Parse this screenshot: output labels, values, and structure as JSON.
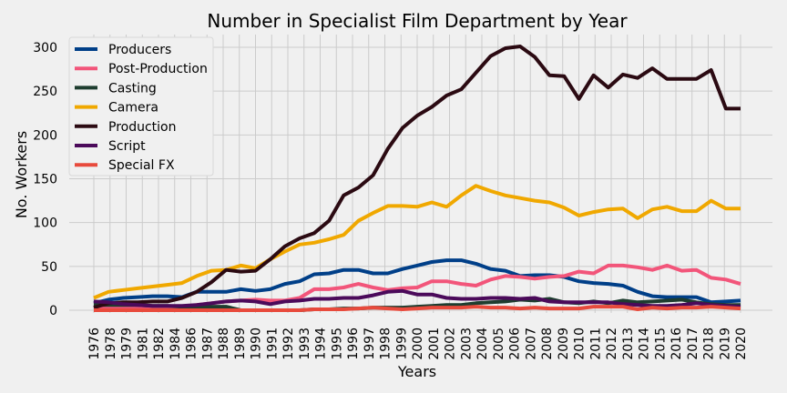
{
  "chart_data": {
    "type": "line",
    "title": "Number in Specialist Film Department by Year",
    "xlabel": "Years",
    "ylabel": "No. Workers",
    "ylim": [
      -2,
      314
    ],
    "yticks": [
      0,
      50,
      100,
      150,
      200,
      250,
      300
    ],
    "grid": true,
    "legend_position": "top-left",
    "x": [
      1976,
      1977,
      1978,
      1979,
      1980,
      1981,
      1982,
      1983,
      1984,
      1985,
      1986,
      1987,
      1988,
      1989,
      1990,
      1991,
      1992,
      1993,
      1994,
      1995,
      1996,
      1997,
      1998,
      1999,
      2000,
      2001,
      2002,
      2003,
      2004,
      2005,
      2006,
      2007,
      2008,
      2009,
      2010,
      2011,
      2012,
      2013,
      2014,
      2015,
      2016,
      2017,
      2018,
      2019,
      2020
    ],
    "xtick_labels": [
      "1976",
      "1978",
      "1979",
      "1981",
      "1982",
      "1984",
      "1986",
      "1987",
      "1988",
      "1989",
      "1990",
      "1991",
      "1992",
      "1993",
      "1994",
      "1995",
      "1996",
      "1997",
      "1998",
      "1999",
      "2000",
      "2001",
      "2002",
      "2003",
      "2004",
      "2005",
      "2006",
      "2007",
      "2008",
      "2009",
      "2010",
      "2011",
      "2012",
      "2013",
      "2014",
      "2015",
      "2016",
      "2017",
      "2018",
      "2019",
      "2020"
    ],
    "series": [
      {
        "name": "Producers",
        "color": "#003f88",
        "values": [
          8,
          12,
          14,
          15,
          16,
          16,
          15,
          21,
          21,
          21,
          24,
          22,
          24,
          30,
          33,
          41,
          42,
          46,
          46,
          42,
          42,
          47,
          51,
          55,
          57,
          57,
          53,
          47,
          45,
          39,
          40,
          40,
          38,
          33,
          31,
          30,
          28,
          21,
          16,
          15,
          15,
          15,
          9,
          10,
          11
        ]
      },
      {
        "name": "Post-Production",
        "color": "#f2557a",
        "values": [
          2,
          3,
          3,
          3,
          3,
          3,
          4,
          6,
          8,
          10,
          11,
          12,
          11,
          11,
          14,
          24,
          24,
          26,
          30,
          26,
          23,
          25,
          26,
          33,
          33,
          30,
          28,
          35,
          39,
          38,
          36,
          38,
          39,
          44,
          42,
          51,
          51,
          49,
          46,
          51,
          45,
          46,
          37,
          35,
          30
        ]
      },
      {
        "name": "Casting",
        "color": "#1e3d2f",
        "values": [
          6,
          6,
          6,
          6,
          5,
          5,
          4,
          4,
          4,
          4,
          0,
          0,
          0,
          0,
          0,
          1,
          1,
          2,
          2,
          3,
          3,
          3,
          4,
          5,
          6,
          6,
          8,
          9,
          10,
          12,
          11,
          13,
          9,
          8,
          10,
          8,
          11,
          9,
          10,
          11,
          12,
          9,
          7,
          6,
          6
        ]
      },
      {
        "name": "Camera",
        "color": "#f0a800",
        "values": [
          14,
          21,
          23,
          25,
          27,
          29,
          31,
          39,
          45,
          46,
          51,
          48,
          58,
          67,
          75,
          77,
          81,
          86,
          102,
          111,
          119,
          119,
          118,
          123,
          118,
          131,
          142,
          136,
          131,
          128,
          125,
          123,
          117,
          108,
          112,
          115,
          116,
          105,
          115,
          118,
          113,
          113,
          125,
          116,
          116
        ]
      },
      {
        "name": "Production",
        "color": "#2b0a12",
        "values": [
          3,
          8,
          9,
          9,
          10,
          10,
          14,
          21,
          32,
          46,
          44,
          45,
          58,
          73,
          82,
          88,
          102,
          131,
          140,
          154,
          184,
          208,
          222,
          232,
          245,
          252,
          271,
          290,
          299,
          301,
          289,
          268,
          267,
          241,
          268,
          254,
          269,
          265,
          276,
          264,
          264,
          264,
          274,
          230,
          230
        ]
      },
      {
        "name": "Script",
        "color": "#4b0a5a",
        "values": [
          10,
          9,
          7,
          6,
          5,
          5,
          5,
          6,
          8,
          10,
          11,
          10,
          7,
          10,
          11,
          13,
          13,
          14,
          14,
          17,
          21,
          22,
          18,
          18,
          14,
          13,
          13,
          14,
          14,
          13,
          14,
          10,
          9,
          9,
          9,
          9,
          7,
          6,
          5,
          5,
          6,
          8,
          6,
          5,
          4
        ]
      },
      {
        "name": "Special FX",
        "color": "#e84a3c",
        "values": [
          0,
          0,
          0,
          0,
          0,
          0,
          0,
          0,
          0,
          0,
          0,
          0,
          0,
          0,
          0,
          1,
          1,
          1,
          2,
          3,
          2,
          1,
          2,
          3,
          3,
          3,
          4,
          3,
          3,
          2,
          3,
          2,
          2,
          2,
          4,
          4,
          4,
          1,
          3,
          2,
          3,
          3,
          4,
          3,
          2
        ]
      }
    ]
  }
}
